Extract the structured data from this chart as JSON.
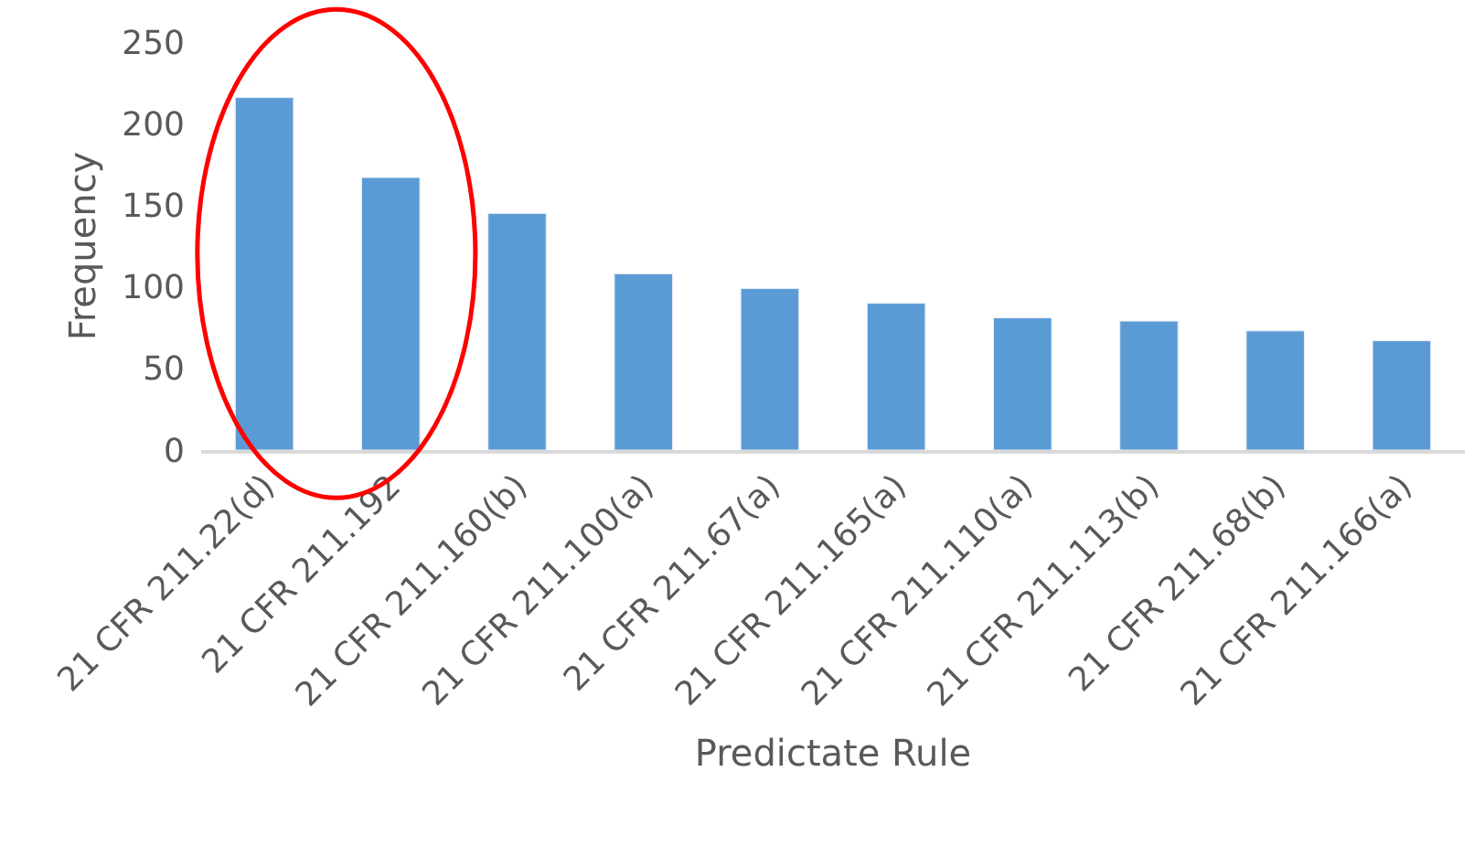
{
  "chart_data": {
    "type": "bar",
    "xlabel": "Predictate Rule",
    "ylabel": "Frequency",
    "categories": [
      "21 CFR 211.22(d)",
      "21 CFR 211.192",
      "21 CFR 211.160(b)",
      "21 CFR 211.100(a)",
      "21 CFR 211.67(a)",
      "21 CFR 211.165(a)",
      "21 CFR 211.110(a)",
      "21 CFR 211.113(b)",
      "21 CFR 211.68(b)",
      "21 CFR 211.166(a)"
    ],
    "values": [
      216,
      167,
      145,
      108,
      99,
      90,
      81,
      79,
      73,
      67
    ],
    "color": "#5b9bd5",
    "ylim": [
      0,
      250
    ],
    "yticks": [
      0,
      50,
      100,
      150,
      200,
      250
    ]
  }
}
